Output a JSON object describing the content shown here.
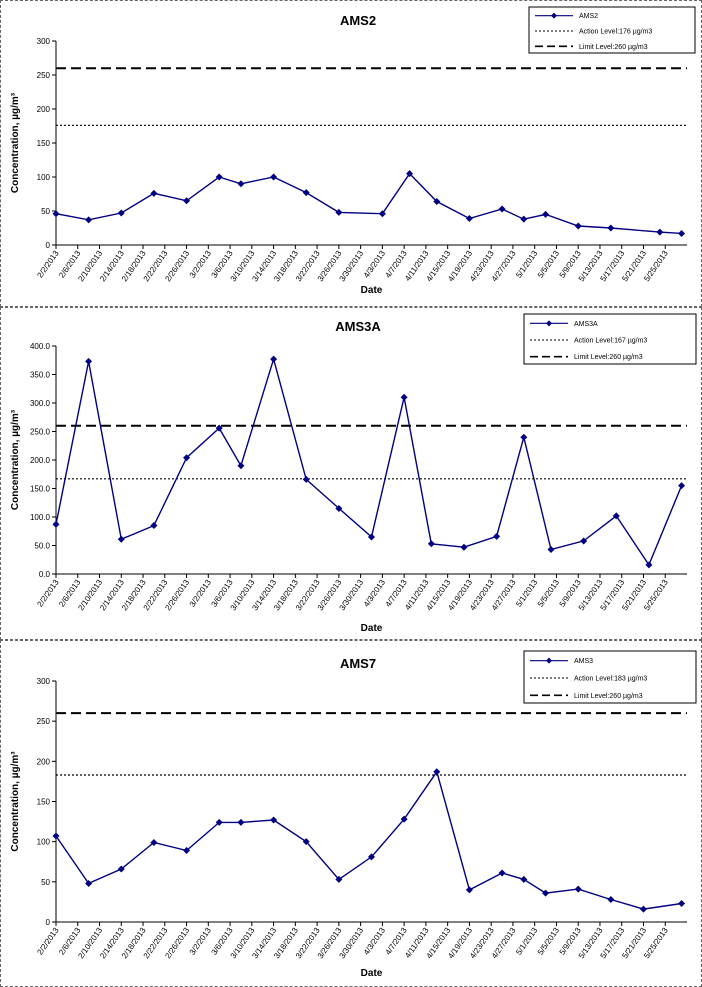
{
  "chart_data": [
    {
      "type": "line",
      "title": "AMS2",
      "xlabel": "Date",
      "ylabel": "Concentration, µg/m³",
      "ylim": [
        0,
        300
      ],
      "yticks": [
        "0",
        "50",
        "100",
        "150",
        "200",
        "250",
        "300"
      ],
      "xlim": [
        "2/2/2013",
        "5/29/2013"
      ],
      "xticks": [
        "2/2/2013",
        "2/6/2013",
        "2/10/2013",
        "2/14/2013",
        "2/18/2013",
        "2/22/2013",
        "2/26/2013",
        "3/2/2013",
        "3/6/2013",
        "3/10/2013",
        "3/14/2013",
        "3/18/2013",
        "3/22/2013",
        "3/26/2013",
        "3/30/2013",
        "4/3/2013",
        "4/7/2013",
        "4/11/2013",
        "4/15/2013",
        "4/19/2013",
        "4/23/2013",
        "4/27/2013",
        "5/1/2013",
        "5/5/2013",
        "5/9/2013",
        "5/13/2013",
        "5/17/2013",
        "5/21/2013",
        "5/25/2013"
      ],
      "series": [
        {
          "name": "AMS2",
          "color": "#000080",
          "x": [
            "2/2/2013",
            "2/8/2013",
            "2/14/2013",
            "2/20/2013",
            "2/26/2013",
            "3/4/2013",
            "3/8/2013",
            "3/14/2013",
            "3/20/2013",
            "3/26/2013",
            "4/3/2013",
            "4/8/2013",
            "4/13/2013",
            "4/19/2013",
            "4/25/2013",
            "4/29/2013",
            "5/3/2013",
            "5/9/2013",
            "5/15/2013",
            "5/24/2013",
            "5/28/2013"
          ],
          "y": [
            46,
            37,
            47,
            76,
            65,
            100,
            90,
            100,
            77,
            48,
            46,
            105,
            64,
            39,
            53,
            38,
            45,
            28,
            25,
            19,
            17
          ]
        }
      ],
      "reference_lines": [
        {
          "label": "Action Level:176 µg/m3",
          "value": 176,
          "style": "dotted"
        },
        {
          "label": "Limit Level:260 µg/m3",
          "value": 260,
          "style": "dashed"
        }
      ],
      "legend": "top-right",
      "grid": false
    },
    {
      "type": "line",
      "title": "AMS3A",
      "xlabel": "Date",
      "ylabel": "Concentration, µg/m³",
      "ylim": [
        0,
        400
      ],
      "yticks": [
        "0.0",
        "50.0",
        "100.0",
        "150.0",
        "200.0",
        "250.0",
        "300.0",
        "350.0",
        "400.0"
      ],
      "xlim": [
        "2/2/2013",
        "5/29/2013"
      ],
      "xticks": [
        "2/2/2013",
        "2/6/2013",
        "2/10/2013",
        "2/14/2013",
        "2/18/2013",
        "2/22/2013",
        "2/26/2013",
        "3/2/2013",
        "3/6/2013",
        "3/10/2013",
        "3/14/2013",
        "3/18/2013",
        "3/22/2013",
        "3/26/2013",
        "3/30/2013",
        "4/3/2013",
        "4/7/2013",
        "4/11/2013",
        "4/15/2013",
        "4/19/2013",
        "4/23/2013",
        "4/27/2013",
        "5/1/2013",
        "5/5/2013",
        "5/9/2013",
        "5/13/2013",
        "5/17/2013",
        "5/21/2013",
        "5/25/2013"
      ],
      "series": [
        {
          "name": "AMS3A",
          "color": "#000080",
          "x": [
            "2/2/2013",
            "2/8/2013",
            "2/14/2013",
            "2/20/2013",
            "2/26/2013",
            "3/4/2013",
            "3/8/2013",
            "3/14/2013",
            "3/20/2013",
            "3/26/2013",
            "4/1/2013",
            "4/7/2013",
            "4/12/2013",
            "4/18/2013",
            "4/24/2013",
            "4/29/2013",
            "5/4/2013",
            "5/10/2013",
            "5/16/2013",
            "5/22/2013",
            "5/28/2013"
          ],
          "y": [
            87,
            373,
            61,
            85,
            204,
            256,
            190,
            377,
            166,
            115,
            65,
            310,
            53,
            47,
            66,
            240,
            43,
            58,
            102,
            16,
            155
          ]
        }
      ],
      "reference_lines": [
        {
          "label": "Action Level:167 µg/m3",
          "value": 167,
          "style": "dotted"
        },
        {
          "label": "Limit Level:260 µg/m3",
          "value": 260,
          "style": "dashed"
        }
      ],
      "legend": "top-right",
      "grid": false
    },
    {
      "type": "line",
      "title": "AMS7",
      "xlabel": "Date",
      "ylabel": "Concentration, µg/m³",
      "ylim": [
        0,
        300
      ],
      "yticks": [
        "0",
        "50",
        "100",
        "150",
        "200",
        "250",
        "300"
      ],
      "xlim": [
        "2/2/2013",
        "5/29/2013"
      ],
      "xticks": [
        "2/2/2013",
        "2/6/2013",
        "2/10/2013",
        "2/14/2013",
        "2/18/2013",
        "2/22/2013",
        "2/26/2013",
        "3/2/2013",
        "3/6/2013",
        "3/10/2013",
        "3/14/2013",
        "3/18/2013",
        "3/22/2013",
        "3/26/2013",
        "3/30/2013",
        "4/3/2013",
        "4/7/2013",
        "4/11/2013",
        "4/15/2013",
        "4/19/2013",
        "4/23/2013",
        "4/27/2013",
        "5/1/2013",
        "5/5/2013",
        "5/9/2013",
        "5/13/2013",
        "5/17/2013",
        "5/21/2013",
        "5/25/2013"
      ],
      "series": [
        {
          "name": "AMS3",
          "color": "#000080",
          "x": [
            "2/2/2013",
            "2/8/2013",
            "2/14/2013",
            "2/20/2013",
            "2/26/2013",
            "3/4/2013",
            "3/8/2013",
            "3/14/2013",
            "3/20/2013",
            "3/26/2013",
            "4/1/2013",
            "4/7/2013",
            "4/13/2013",
            "4/19/2013",
            "4/25/2013",
            "4/29/2013",
            "5/3/2013",
            "5/9/2013",
            "5/15/2013",
            "5/21/2013",
            "5/28/2013"
          ],
          "y": [
            107,
            48,
            66,
            99,
            89,
            124,
            124,
            127,
            100,
            53,
            81,
            128,
            187,
            40,
            61,
            53,
            36,
            41,
            28,
            16,
            23
          ]
        }
      ],
      "reference_lines": [
        {
          "label": "Action Level:183 µg/m3",
          "value": 183,
          "style": "dotted"
        },
        {
          "label": "Limit Level:260 µg/m3",
          "value": 260,
          "style": "dashed"
        }
      ],
      "legend": "top-right",
      "grid": false
    }
  ]
}
